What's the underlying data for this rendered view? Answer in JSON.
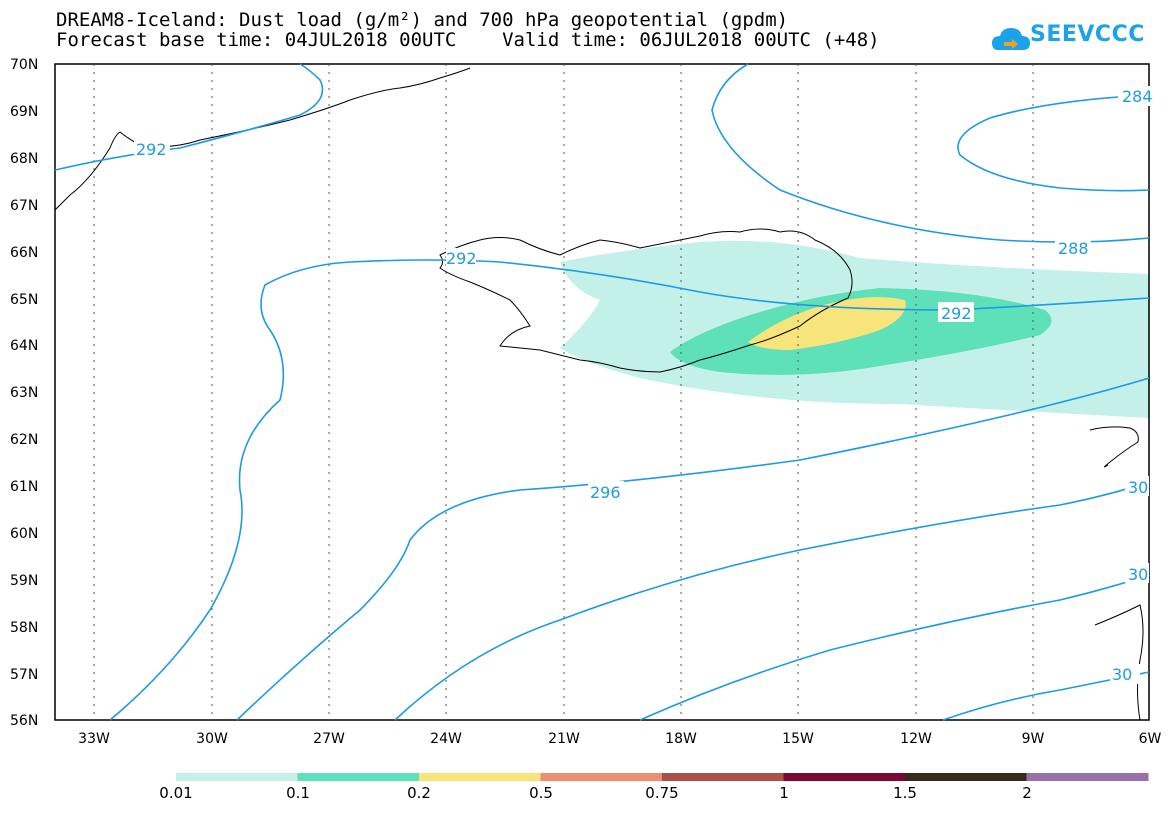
{
  "header": {
    "title_line1": "DREAM8-Iceland: Dust load (g/m²) and 700 hPa geopotential (gpdm)",
    "title_line2": "Forecast base time: 04JUL2018 00UTC    Valid time: 06JUL2018 00UTC (+48)",
    "logo_text": "SEEVCCC",
    "logo_icon": "cloud-icon"
  },
  "axes": {
    "lat_labels": [
      "70N",
      "69N",
      "68N",
      "67N",
      "66N",
      "65N",
      "64N",
      "63N",
      "62N",
      "61N",
      "60N",
      "59N",
      "58N",
      "57N",
      "56N"
    ],
    "lon_labels": [
      "33W",
      "30W",
      "27W",
      "24W",
      "21W",
      "18W",
      "15W",
      "12W",
      "9W",
      "6W"
    ]
  },
  "contour_labels": [
    "284",
    "292",
    "288",
    "292",
    "296",
    "30",
    "30",
    "30",
    "292"
  ],
  "colorbar": {
    "labels": [
      "0.01",
      "0.1",
      "0.2",
      "0.5",
      "0.75",
      "1",
      "1.5",
      "2"
    ],
    "colors": [
      "#c4f0ea",
      "#5ee0b8",
      "#f7e47a",
      "#e99070",
      "#a8504a",
      "#7a0a30",
      "#3a2a1a",
      "#9a70a8"
    ]
  },
  "colors": {
    "contour": "#1e9be3",
    "dust_low": "#c4f0ea",
    "dust_mid": "#5ee0b8",
    "dust_high": "#f7e47a"
  }
}
